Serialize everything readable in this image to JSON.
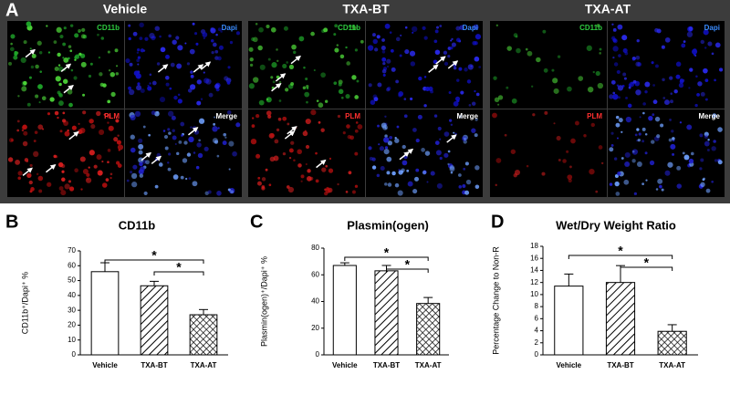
{
  "panel_a": {
    "letter": "A",
    "groups": [
      {
        "title": "Vehicle",
        "channels": [
          "CD11b",
          "Dapi",
          "PLM",
          "Merge"
        ]
      },
      {
        "title": "TXA-BT",
        "channels": [
          "CD11b",
          "Dapi",
          "PLM",
          "Merge"
        ]
      },
      {
        "title": "TXA-AT",
        "channels": [
          "CD11b",
          "Dapi",
          "PLM",
          "Merge"
        ]
      }
    ]
  },
  "chart_data": [
    {
      "type": "bar",
      "panel": "B",
      "title": "CD11b",
      "y_label": "CD11b⁺/Dapi⁺ %",
      "categories": [
        "Vehicle",
        "TXA-BT",
        "TXA-AT"
      ],
      "values": [
        56,
        46.5,
        27
      ],
      "errors": [
        6,
        3,
        3.5
      ],
      "fills": [
        "white",
        "hatch",
        "crosshatch"
      ],
      "ylim": [
        0,
        70
      ],
      "yticks": [
        0,
        10,
        20,
        30,
        40,
        50,
        60,
        70
      ],
      "significance": [
        "*",
        "*"
      ]
    },
    {
      "type": "bar",
      "panel": "C",
      "title": "Plasmin(ogen)",
      "y_label": "Plasmin(ogen)⁺/Dapi⁺ %",
      "categories": [
        "Vehicle",
        "TXA-BT",
        "TXA-AT"
      ],
      "values": [
        67,
        63,
        38.5
      ],
      "errors": [
        2,
        4,
        4.5
      ],
      "fills": [
        "white",
        "hatch",
        "crosshatch"
      ],
      "ylim": [
        0,
        80
      ],
      "yticks": [
        0,
        20,
        40,
        60,
        80
      ],
      "significance": [
        "*",
        "*"
      ]
    },
    {
      "type": "bar",
      "panel": "D",
      "title": "Wet/Dry Weight Ratio",
      "y_label": "Percentage Change to Non-R",
      "categories": [
        "Vehicle",
        "TXA-BT",
        "TXA-AT"
      ],
      "values": [
        11.4,
        12,
        3.9
      ],
      "errors": [
        2,
        2.8,
        1.1
      ],
      "fills": [
        "white",
        "hatch",
        "crosshatch"
      ],
      "ylim": [
        0,
        18
      ],
      "yticks": [
        0,
        2,
        4,
        6,
        8,
        10,
        12,
        14,
        16,
        18
      ],
      "significance": [
        "*",
        "*"
      ]
    }
  ]
}
